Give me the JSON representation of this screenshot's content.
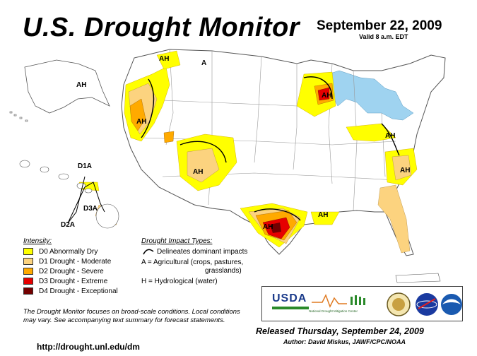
{
  "header": {
    "title": "U.S. Drought Monitor",
    "date": "September 22, 2009",
    "valid": "Valid 8 a.m. EDT"
  },
  "map_labels": {
    "ah": "AH",
    "a": "A",
    "d1a": "D1A",
    "d3a": "D3A",
    "d2a": "D2A"
  },
  "legend": {
    "title": "Intensity:",
    "items": [
      {
        "label": "D0 Abnormally Dry",
        "color": "#ffff00"
      },
      {
        "label": "D1 Drought - Moderate",
        "color": "#fcd37f"
      },
      {
        "label": "D2 Drought - Severe",
        "color": "#ffaa00"
      },
      {
        "label": "D3 Drought - Extreme",
        "color": "#e60000"
      },
      {
        "label": "D4 Drought - Exceptional",
        "color": "#730000"
      }
    ]
  },
  "impacts": {
    "title": "Drought Impact Types:",
    "line1": "Delineates dominant impacts",
    "line2": "A = Agricultural (crops, pastures,",
    "line3": "grasslands)",
    "line4": "H = Hydrological (water)"
  },
  "note": "The Drought Monitor focuses on broad-scale conditions. Local conditions may vary. See accompanying text summary for forecast statements.",
  "url": "http://drought.unl.edu/dm",
  "released": "Released Thursday, September 24, 2009",
  "author": "Author: David Miskus, JAWF/CPC/NOAA",
  "logos": {
    "usda": "USDA",
    "ndmc": "National Drought Mitigation Center"
  },
  "colors": {
    "water": "#9fd3f0",
    "land": "#ffffff",
    "d0": "#ffff00",
    "d1": "#fcd37f",
    "d2": "#ffaa00",
    "d3": "#e60000",
    "d4": "#730000"
  }
}
